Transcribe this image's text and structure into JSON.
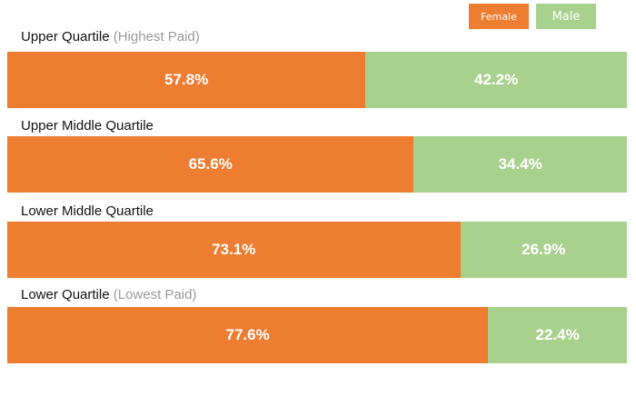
{
  "colors": {
    "female": "#ED7D31",
    "male": "#A9D18E"
  },
  "legend": [
    {
      "label": "Female",
      "color": "#ED7D31"
    },
    {
      "label": "Male",
      "color": "#A9D18E"
    }
  ],
  "chart_data": {
    "type": "bar",
    "orientation": "horizontal",
    "stacked": true,
    "percent_stacked": true,
    "legend_placement": "top-right",
    "grid": false,
    "xlim": [
      0,
      100
    ],
    "categories": [
      {
        "label": "Upper Quartile",
        "sublabel": "(Highest Paid)"
      },
      {
        "label": "Upper Middle Quartile",
        "sublabel": ""
      },
      {
        "label": "Lower Middle Quartile",
        "sublabel": ""
      },
      {
        "label": "Lower Quartile",
        "sublabel": "(Lowest Paid)"
      }
    ],
    "series": [
      {
        "name": "Female",
        "values": [
          57.8,
          65.6,
          73.1,
          77.6
        ],
        "labels": [
          "57.8%",
          "65.6%",
          "73.1%",
          "77.6%"
        ]
      },
      {
        "name": "Male",
        "values": [
          42.2,
          34.4,
          26.9,
          22.4
        ],
        "labels": [
          "42.2%",
          "34.4%",
          "26.9%",
          "22.4%"
        ]
      }
    ]
  }
}
